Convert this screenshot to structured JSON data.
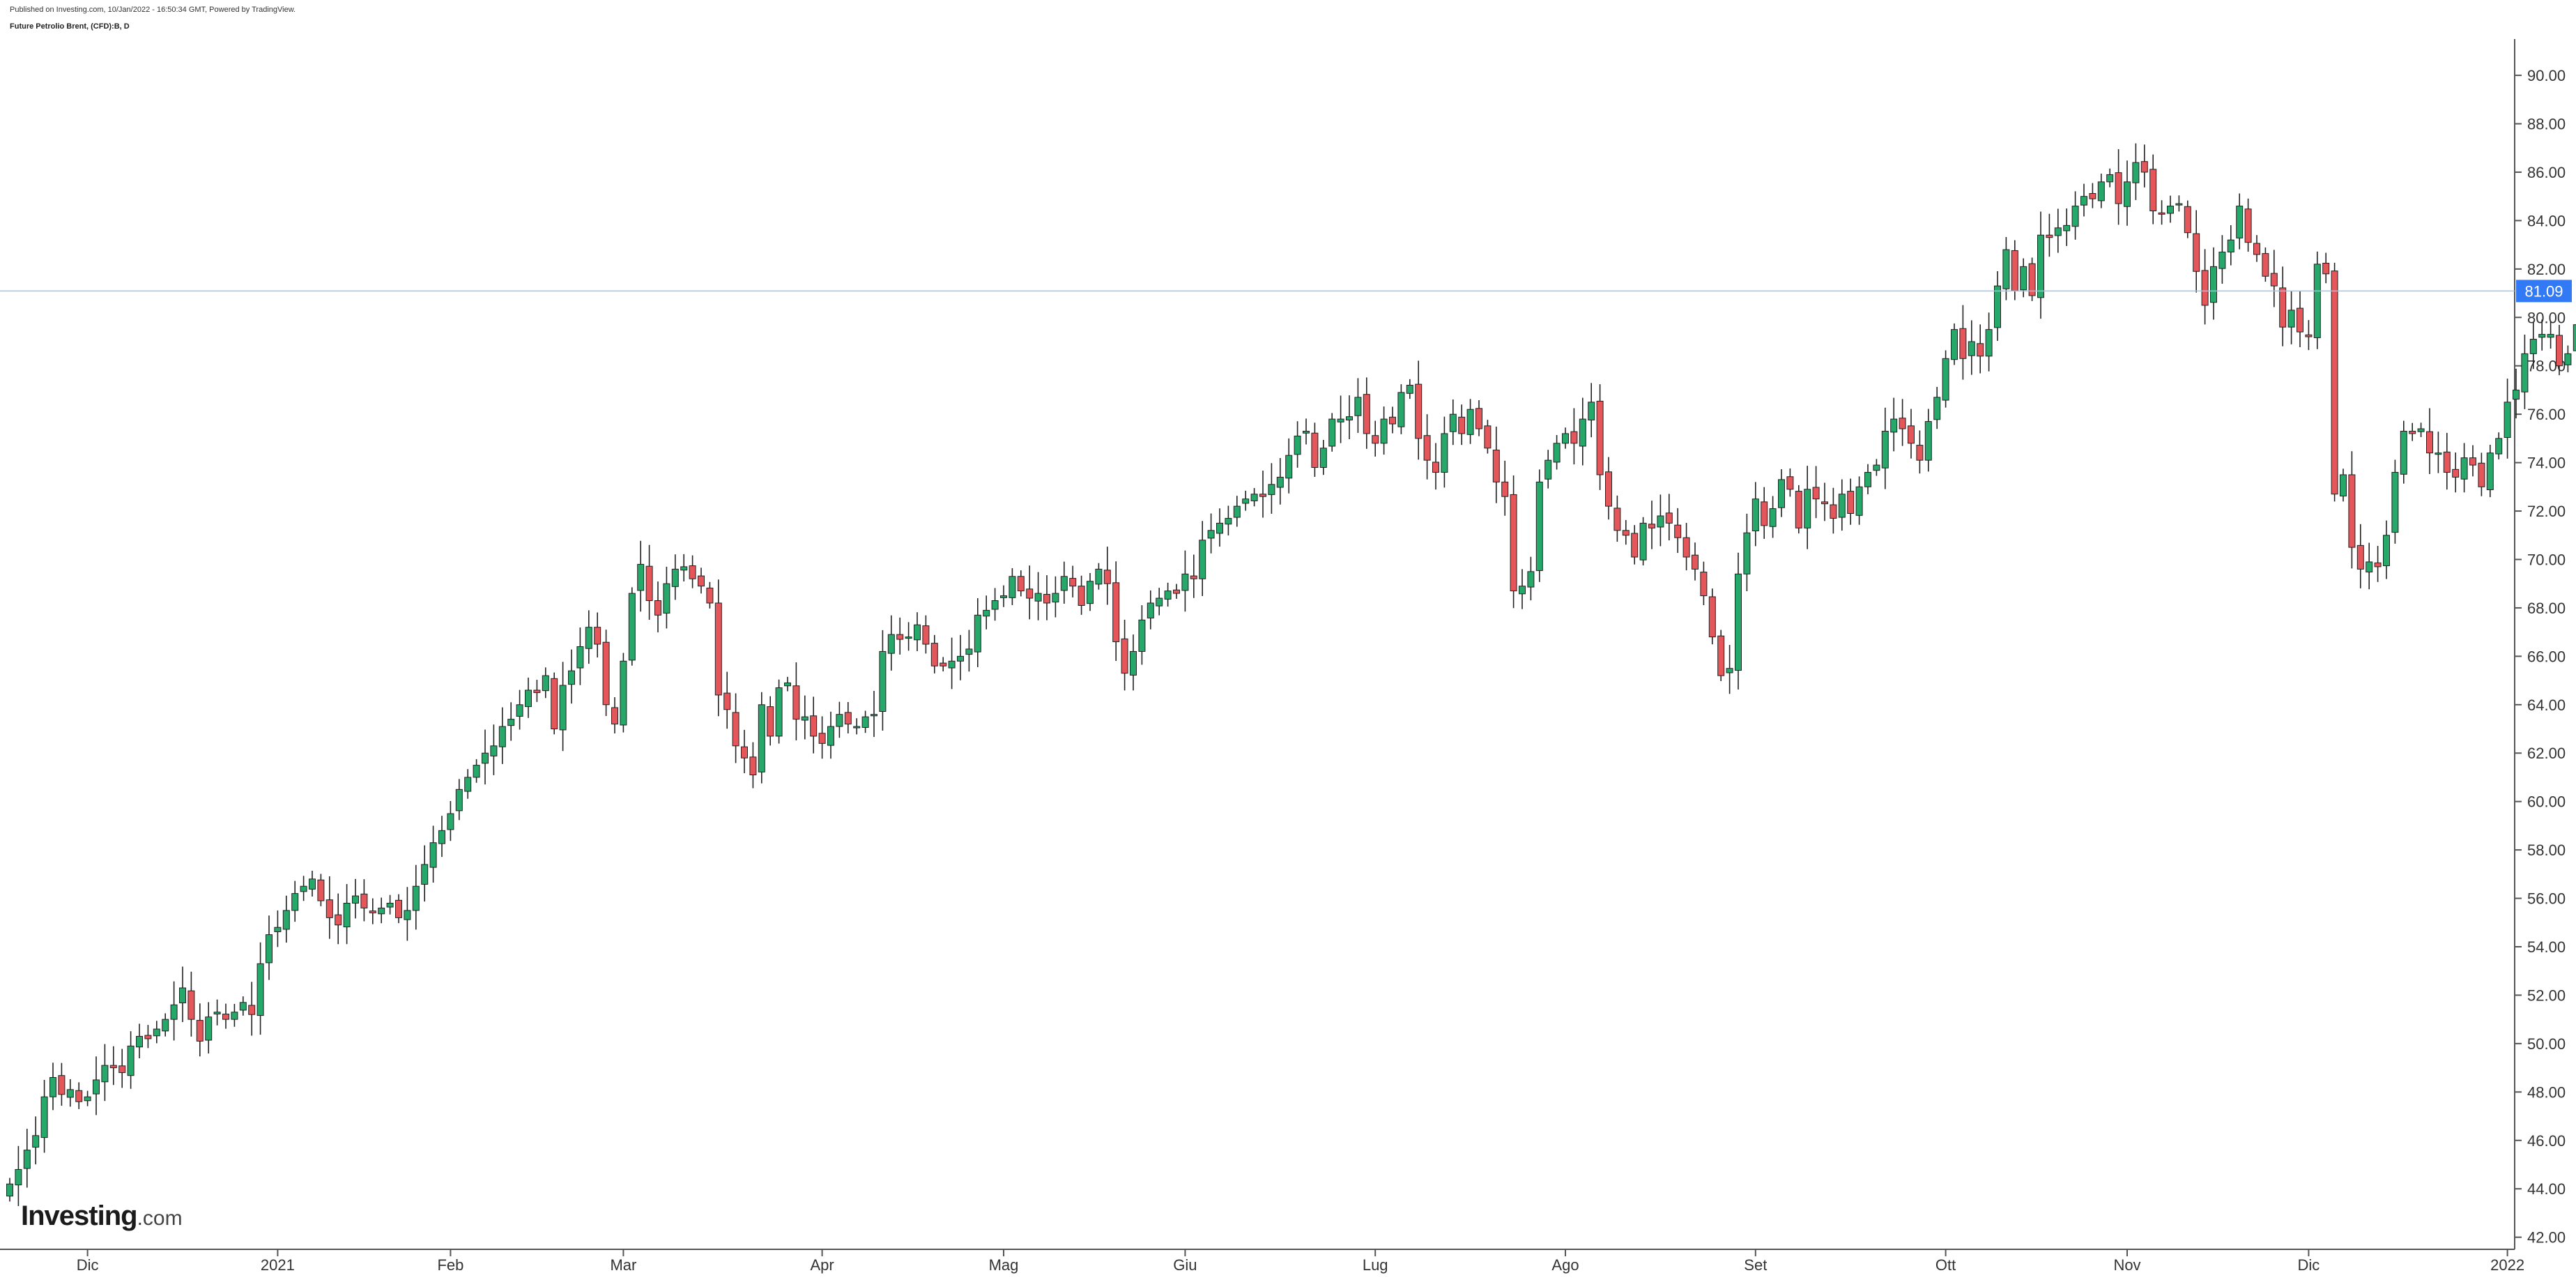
{
  "header": {
    "published": "Published on Investing.com, 10/Jan/2022 - 16:50:34 GMT, Powered by TradingView.",
    "symbol": "Future Petrolio Brent, (CFD):B, D"
  },
  "logo": {
    "brand": "Investing",
    "suffix": ".com"
  },
  "colors": {
    "up": "#26a86a",
    "down": "#e5565b",
    "wick": "#222222",
    "last_price_bg": "#3179f5",
    "last_price_line": "#9cc4e4"
  },
  "chart_data": {
    "type": "candlestick",
    "title": "Future Petrolio Brent, (CFD):B, D",
    "ylim": [
      41.5,
      91.5
    ],
    "yticks": [
      "42.00",
      "44.00",
      "46.00",
      "48.00",
      "50.00",
      "52.00",
      "54.00",
      "56.00",
      "58.00",
      "60.00",
      "62.00",
      "64.00",
      "66.00",
      "68.00",
      "70.00",
      "72.00",
      "74.00",
      "76.00",
      "78.00",
      "80.00",
      "82.00",
      "84.00",
      "86.00",
      "88.00",
      "90.00"
    ],
    "xticks": [
      {
        "label": "Dic",
        "index": 9
      },
      {
        "label": "2021",
        "index": 31
      },
      {
        "label": "Feb",
        "index": 51
      },
      {
        "label": "Mar",
        "index": 71
      },
      {
        "label": "Apr",
        "index": 94
      },
      {
        "label": "Mag",
        "index": 115
      },
      {
        "label": "Giu",
        "index": 136
      },
      {
        "label": "Lug",
        "index": 158
      },
      {
        "label": "Ago",
        "index": 180
      },
      {
        "label": "Set",
        "index": 202
      },
      {
        "label": "Ott",
        "index": 224
      },
      {
        "label": "Nov",
        "index": 245
      },
      {
        "label": "Dic",
        "index": 266
      },
      {
        "label": "2022",
        "index": 289
      }
    ],
    "last_price": "81.09",
    "last_price_value": 81.09,
    "closes": [
      44.2,
      44.8,
      45.6,
      46.2,
      47.8,
      48.6,
      47.9,
      48.1,
      47.6,
      47.8,
      48.5,
      49.1,
      49.0,
      48.8,
      49.9,
      50.3,
      50.2,
      50.6,
      51.0,
      51.6,
      52.3,
      51.0,
      50.1,
      51.1,
      51.3,
      51.0,
      51.3,
      51.7,
      51.2,
      53.3,
      54.5,
      54.8,
      55.5,
      56.2,
      56.5,
      56.8,
      55.9,
      55.2,
      54.9,
      55.8,
      56.1,
      55.6,
      55.4,
      55.6,
      55.8,
      55.2,
      55.5,
      56.5,
      57.4,
      58.3,
      58.8,
      59.5,
      60.5,
      61.0,
      61.5,
      62.0,
      62.3,
      63.1,
      63.4,
      64.0,
      64.6,
      64.5,
      65.2,
      63.0,
      64.8,
      65.4,
      66.4,
      67.2,
      66.5,
      64.0,
      63.2,
      65.8,
      68.6,
      69.8,
      68.3,
      67.7,
      69.0,
      69.6,
      69.7,
      69.2,
      68.9,
      68.2,
      64.4,
      63.8,
      62.3,
      61.8,
      61.1,
      64.0,
      62.7,
      64.7,
      64.9,
      63.4,
      63.5,
      62.7,
      62.4,
      63.1,
      63.6,
      63.2,
      63.1,
      63.5,
      63.6,
      66.2,
      66.9,
      66.7,
      66.8,
      67.3,
      66.5,
      65.6,
      65.6,
      65.8,
      66.0,
      66.3,
      67.7,
      67.9,
      68.3,
      68.5,
      69.3,
      68.7,
      68.4,
      68.6,
      68.2,
      68.6,
      69.3,
      68.9,
      68.1,
      69.1,
      69.6,
      69.0,
      66.6,
      65.3,
      66.2,
      67.5,
      68.2,
      68.4,
      68.7,
      68.6,
      69.4,
      69.2,
      70.8,
      71.2,
      71.5,
      71.7,
      72.2,
      72.5,
      72.7,
      72.6,
      73.1,
      73.4,
      74.3,
      75.1,
      75.3,
      73.8,
      74.6,
      75.8,
      75.8,
      75.9,
      76.7,
      75.2,
      74.8,
      75.8,
      75.6,
      76.9,
      77.2,
      75.0,
      74.1,
      73.6,
      75.2,
      76.0,
      75.2,
      76.2,
      75.4,
      74.6,
      73.2,
      72.6,
      68.7,
      68.9,
      69.5,
      73.2,
      74.1,
      74.8,
      75.2,
      74.8,
      75.8,
      76.5,
      73.5,
      72.2,
      71.2,
      71.0,
      70.1,
      71.5,
      71.3,
      71.8,
      71.5,
      70.9,
      70.1,
      69.6,
      68.5,
      66.8,
      65.2,
      65.5,
      69.4,
      71.1,
      72.5,
      71.4,
      72.1,
      73.3,
      72.9,
      71.3,
      72.9,
      72.5,
      72.3,
      71.7,
      72.7,
      71.9,
      73.0,
      73.6,
      73.9,
      75.3,
      75.8,
      75.4,
      74.8,
      74.1,
      75.7,
      76.7,
      78.3,
      79.5,
      78.3,
      79.0,
      78.4,
      79.5,
      81.3,
      82.8,
      81.1,
      82.1,
      80.9,
      83.4,
      83.3,
      83.7,
      83.8,
      84.6,
      85.0,
      84.9,
      85.6,
      85.9,
      84.7,
      85.6,
      86.4,
      86.0,
      84.4,
      84.3,
      84.6,
      84.7,
      83.5,
      81.9,
      80.5,
      82.1,
      82.7,
      83.2,
      84.6,
      83.1,
      82.6,
      81.7,
      81.3,
      79.6,
      80.3,
      79.4,
      79.2,
      82.2,
      81.8,
      72.7,
      73.5,
      70.5,
      69.6,
      69.9,
      69.7,
      71.0,
      73.6,
      75.3,
      75.2,
      75.4,
      74.4,
      74.4,
      73.6,
      73.4,
      74.2,
      73.9,
      73.0,
      74.4,
      75.0,
      76.5,
      77.0,
      78.5,
      79.1,
      79.3,
      79.3,
      78.0,
      78.5,
      79.7,
      80.9,
      81.8,
      81.9,
      81.1
    ]
  }
}
